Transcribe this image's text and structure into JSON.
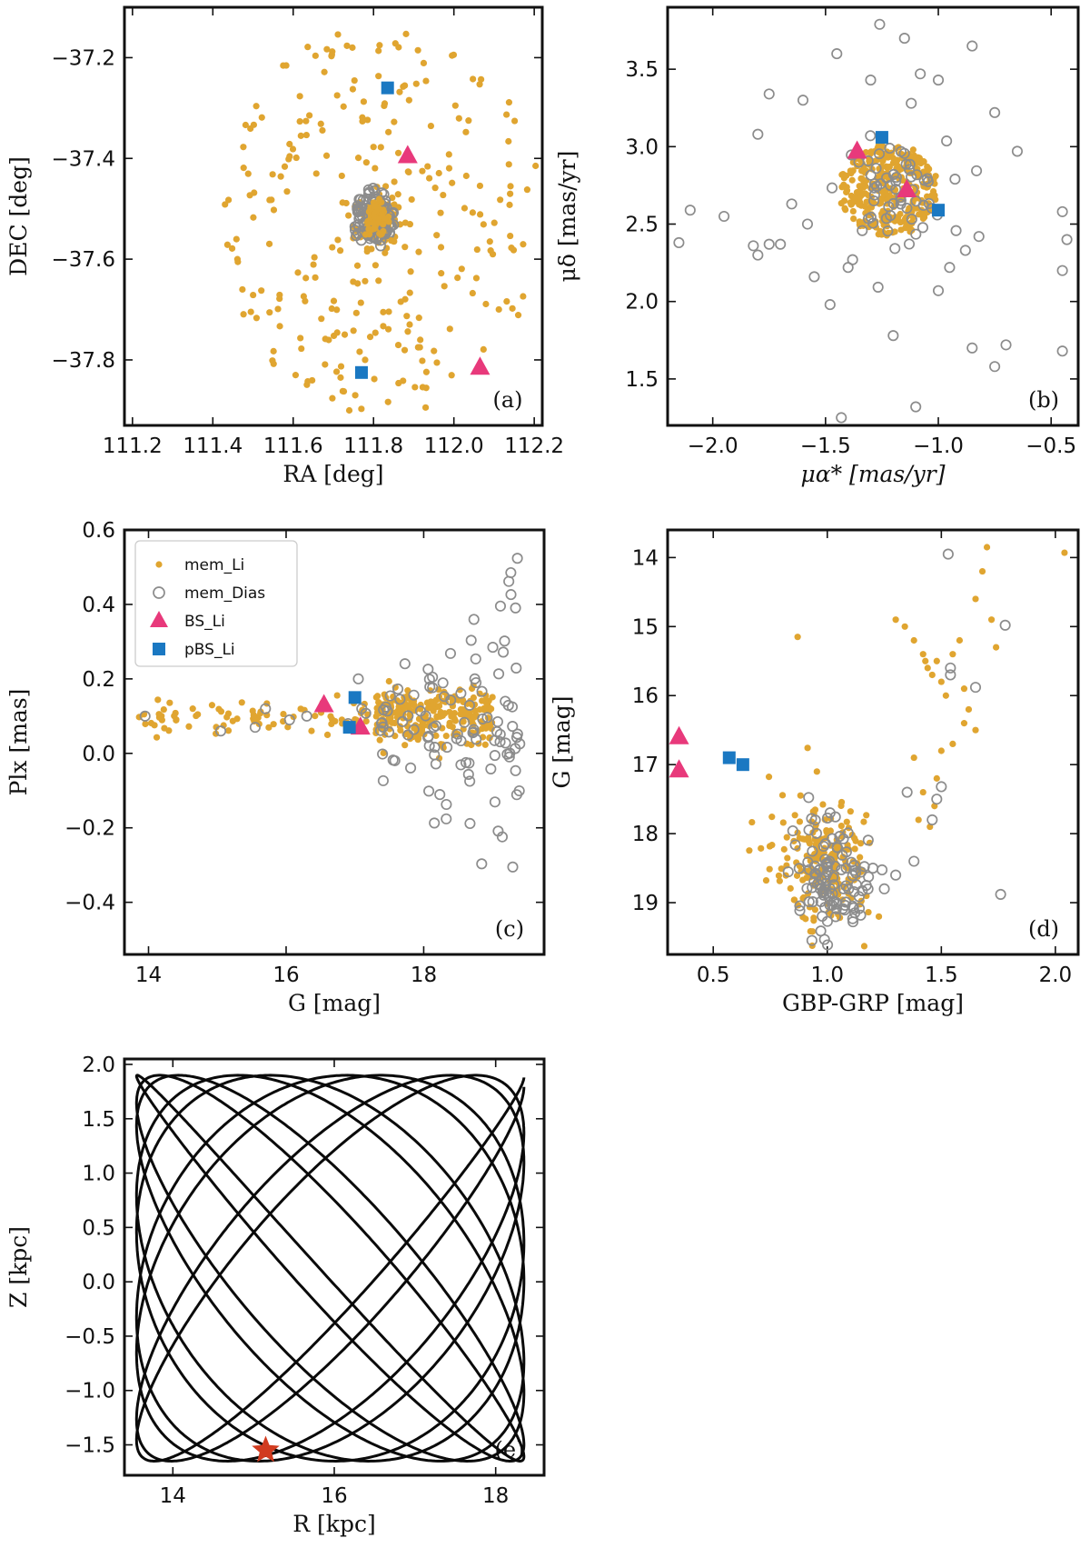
{
  "colors": {
    "mem_li": "#e0a530",
    "mem_dias": "#8c8c8c",
    "bs_li": "#e8397b",
    "pbs_li": "#1a78c2",
    "orbit": "#0a0a0a",
    "star": "#d13b1f"
  },
  "chart_data": [
    {
      "id": "a",
      "type": "scatter",
      "panel_label": "(a)",
      "xlabel": "RA [deg]",
      "ylabel": "DEC [deg]",
      "xlim": [
        111.18,
        112.22
      ],
      "ylim": [
        -37.93,
        -37.1
      ],
      "xticks": [
        111.2,
        111.4,
        111.6,
        111.8,
        112.0,
        112.2
      ],
      "xticklabels": [
        "111.2",
        "111.4",
        "111.6",
        "111.8",
        "112.0",
        "112.2"
      ],
      "yticks": [
        -37.2,
        -37.4,
        -37.6,
        -37.8
      ],
      "yticklabels": [
        "−37.2",
        "−37.4",
        "−37.6",
        "−37.8"
      ],
      "mem_li_cluster": {
        "center": [
          111.81,
          -37.52
        ],
        "spread": [
          0.025,
          0.028
        ],
        "count": 120
      },
      "mem_li_field": {
        "center": [
          111.82,
          -37.52
        ],
        "radius": [
          0.4,
          0.39
        ],
        "count": 260
      },
      "mem_dias_cluster": {
        "center": [
          111.8,
          -37.52
        ],
        "spread": [
          0.027,
          0.032
        ],
        "count": 90
      },
      "bs_li": [
        [
          111.885,
          -37.395
        ],
        [
          112.065,
          -37.815
        ]
      ],
      "pbs_li": [
        [
          111.835,
          -37.26
        ],
        [
          111.77,
          -37.825
        ]
      ]
    },
    {
      "id": "b",
      "type": "scatter",
      "panel_label": "(b)",
      "xlabel": "μα* [mas/yr]",
      "ylabel": "μδ [mas/yr]",
      "xlim": [
        -2.2,
        -0.38
      ],
      "ylim": [
        1.2,
        3.9
      ],
      "xticks": [
        -2.0,
        -1.5,
        -1.0,
        -0.5
      ],
      "xticklabels": [
        "−2.0",
        "−1.5",
        "−1.0",
        "−0.5"
      ],
      "yticks": [
        1.5,
        2.0,
        2.5,
        3.0,
        3.5
      ],
      "yticklabels": [
        "1.5",
        "2.0",
        "2.5",
        "3.0",
        "3.5"
      ],
      "mem_li_cluster": {
        "center": [
          -1.22,
          2.72
        ],
        "spread": [
          0.11,
          0.15
        ],
        "count": 320
      },
      "mem_dias_cluster": {
        "center": [
          -1.2,
          2.72
        ],
        "spread": [
          0.09,
          0.12
        ],
        "count": 60
      },
      "mem_dias_outliers": [
        [
          -2.15,
          2.38
        ],
        [
          -2.1,
          2.59
        ],
        [
          -1.95,
          2.55
        ],
        [
          -1.8,
          3.08
        ],
        [
          -1.75,
          3.34
        ],
        [
          -1.6,
          3.3
        ],
        [
          -1.45,
          3.6
        ],
        [
          -1.3,
          3.43
        ],
        [
          -1.26,
          3.79
        ],
        [
          -1.15,
          3.7
        ],
        [
          -1.08,
          3.47
        ],
        [
          -1.0,
          3.43
        ],
        [
          -0.85,
          3.65
        ],
        [
          -0.75,
          3.22
        ],
        [
          -0.65,
          2.97
        ],
        [
          -0.45,
          2.58
        ],
        [
          -0.43,
          2.4
        ],
        [
          -0.45,
          2.2
        ],
        [
          -0.45,
          1.68
        ],
        [
          -0.7,
          1.72
        ],
        [
          -0.75,
          1.58
        ],
        [
          -0.85,
          1.7
        ],
        [
          -1.1,
          1.32
        ],
        [
          -1.2,
          1.78
        ],
        [
          -1.43,
          1.25
        ],
        [
          -1.48,
          1.98
        ],
        [
          -1.4,
          2.22
        ],
        [
          -1.55,
          2.16
        ],
        [
          -1.75,
          2.37
        ],
        [
          -1.8,
          2.3
        ],
        [
          -1.82,
          2.36
        ],
        [
          -1.7,
          2.37
        ],
        [
          -1.65,
          2.63
        ],
        [
          -0.95,
          2.22
        ],
        [
          -0.88,
          2.33
        ],
        [
          -0.82,
          2.42
        ],
        [
          -1.0,
          2.07
        ],
        [
          -1.58,
          2.5
        ],
        [
          -1.38,
          2.27
        ],
        [
          -1.12,
          3.28
        ]
      ],
      "bs_li": [
        [
          -1.36,
          2.97
        ],
        [
          -1.14,
          2.72
        ]
      ],
      "pbs_li": [
        [
          -1.25,
          3.06
        ],
        [
          -1.0,
          2.59
        ]
      ]
    },
    {
      "id": "c",
      "type": "scatter",
      "panel_label": "(c)",
      "xlabel": "G [mag]",
      "ylabel": "Plx [mas]",
      "xlim": [
        13.65,
        19.75
      ],
      "ylim": [
        -0.54,
        0.6
      ],
      "xticks": [
        14,
        16,
        18
      ],
      "xticklabels": [
        "14",
        "16",
        "18"
      ],
      "yticks": [
        -0.4,
        -0.2,
        0.0,
        0.2,
        0.4,
        0.6
      ],
      "yticklabels": [
        "−0.4",
        "−0.2",
        "0.0",
        "0.2",
        "0.4",
        "0.6"
      ],
      "legend": [
        "mem_Li",
        "mem_Dias",
        "BS_Li",
        "pBS_Li"
      ],
      "mem_li_bright": {
        "g_range": [
          13.85,
          17.2
        ],
        "plx_center": 0.095,
        "spread": 0.025,
        "count": 80
      },
      "mem_li_faint": {
        "g_range": [
          17.3,
          19.0
        ],
        "plx_center": 0.1,
        "spread": 0.04,
        "count": 230
      },
      "mem_dias_bright": [
        [
          13.95,
          0.1
        ],
        [
          15.05,
          0.06
        ],
        [
          15.55,
          0.07
        ],
        [
          15.7,
          0.12
        ],
        [
          16.05,
          0.09
        ],
        [
          16.3,
          0.1
        ],
        [
          16.9,
          0.08
        ],
        [
          17.05,
          0.2
        ],
        [
          17.1,
          0.12
        ]
      ],
      "mem_dias_faint": {
        "g_range": [
          17.1,
          19.4
        ],
        "plx_center": 0.08,
        "spread": 0.14,
        "count": 110
      },
      "bs_li": [
        [
          16.55,
          0.13
        ],
        [
          17.08,
          0.07
        ]
      ],
      "pbs_li": [
        [
          17.0,
          0.15
        ],
        [
          16.92,
          0.07
        ]
      ]
    },
    {
      "id": "d",
      "type": "scatter",
      "panel_label": "(d)",
      "xlabel": "GBP-GRP [mag]",
      "ylabel": "G [mag]",
      "xlim": [
        0.3,
        2.1
      ],
      "ylim": [
        19.75,
        13.6
      ],
      "xticks": [
        0.5,
        1.0,
        1.5,
        2.0
      ],
      "xticklabels": [
        "0.5",
        "1.0",
        "1.5",
        "2.0"
      ],
      "yticks": [
        14,
        15,
        16,
        17,
        18,
        19
      ],
      "yticklabels": [
        "14",
        "15",
        "16",
        "17",
        "18",
        "19"
      ],
      "mem_li_ms": {
        "center": [
          0.98,
          18.45
        ],
        "spread": [
          0.1,
          0.45
        ],
        "count": 200
      },
      "mem_li_giants": [
        [
          1.3,
          14.9
        ],
        [
          1.34,
          15.0
        ],
        [
          1.38,
          15.2
        ],
        [
          1.42,
          15.4
        ],
        [
          1.43,
          15.5
        ],
        [
          1.44,
          15.6
        ],
        [
          1.46,
          15.7
        ],
        [
          1.48,
          15.5
        ],
        [
          1.5,
          15.8
        ],
        [
          1.52,
          16.0
        ],
        [
          1.55,
          15.4
        ],
        [
          1.58,
          15.2
        ],
        [
          1.6,
          15.9
        ],
        [
          1.62,
          16.2
        ],
        [
          1.65,
          16.5
        ],
        [
          1.65,
          14.6
        ],
        [
          1.68,
          14.2
        ],
        [
          1.7,
          13.85
        ],
        [
          1.72,
          14.9
        ],
        [
          1.74,
          15.3
        ],
        [
          1.5,
          16.8
        ],
        [
          1.48,
          17.2
        ],
        [
          1.47,
          17.6
        ],
        [
          1.45,
          17.9
        ],
        [
          1.42,
          17.4
        ],
        [
          1.4,
          17.8
        ],
        [
          1.38,
          16.9
        ],
        [
          1.55,
          16.7
        ],
        [
          1.6,
          16.4
        ],
        [
          2.04,
          13.93
        ],
        [
          0.87,
          15.15
        ]
      ],
      "mem_dias_ms": {
        "center": [
          1.02,
          18.65
        ],
        "spread": [
          0.08,
          0.4
        ],
        "count": 110
      },
      "mem_dias_giants": [
        [
          1.53,
          13.95
        ],
        [
          1.54,
          15.6
        ],
        [
          1.54,
          15.7
        ],
        [
          1.65,
          15.88
        ],
        [
          1.78,
          14.98
        ],
        [
          1.5,
          17.32
        ],
        [
          1.48,
          17.5
        ],
        [
          1.46,
          17.8
        ],
        [
          1.35,
          17.4
        ],
        [
          1.3,
          18.6
        ],
        [
          1.38,
          18.4
        ],
        [
          1.2,
          18.5
        ],
        [
          1.25,
          18.8
        ],
        [
          1.76,
          18.88
        ]
      ],
      "bs_li": [
        [
          0.35,
          16.6
        ],
        [
          0.35,
          17.08
        ]
      ],
      "pbs_li": [
        [
          0.57,
          16.9
        ],
        [
          0.63,
          17.0
        ]
      ]
    },
    {
      "id": "e",
      "type": "line",
      "panel_label": "(e)",
      "xlabel": "R [kpc]",
      "ylabel": "Z [kpc]",
      "xlim": [
        13.4,
        18.6
      ],
      "ylim": [
        -1.78,
        2.05
      ],
      "xticks": [
        14,
        16,
        18
      ],
      "xticklabels": [
        "14",
        "16",
        "18"
      ],
      "yticks": [
        -1.5,
        -1.0,
        -0.5,
        0.0,
        0.5,
        1.0,
        1.5,
        2.0
      ],
      "yticklabels": [
        "−1.5",
        "−1.0",
        "−0.5",
        "0.0",
        "0.5",
        "1.0",
        "1.5",
        "2.0"
      ],
      "orbit": {
        "r_range": [
          13.55,
          18.35
        ],
        "z_range": [
          -1.65,
          1.9
        ],
        "n_loops": 9
      },
      "current_position": [
        15.15,
        -1.55
      ]
    }
  ]
}
